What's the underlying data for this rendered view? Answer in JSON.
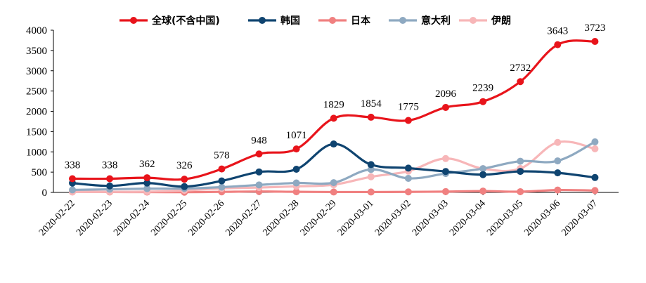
{
  "chart_data": {
    "type": "line",
    "categories": [
      "2020-02-22",
      "2020-02-23",
      "2020-02-24",
      "2020-02-25",
      "2020-02-26",
      "2020-02-27",
      "2020-02-28",
      "2020-02-29",
      "2020-03-01",
      "2020-03-02",
      "2020-03-03",
      "2020-03-04",
      "2020-03-05",
      "2020-03-06",
      "2020-03-07"
    ],
    "ylim": [
      0,
      4000
    ],
    "yticks": [
      0,
      500,
      1000,
      1500,
      2000,
      2500,
      3000,
      3500,
      4000
    ],
    "grid": false,
    "legend_position": "top",
    "series": [
      {
        "name": "全球(不含中国)",
        "color": "#e8141b",
        "labeled": true,
        "values": [
          338,
          338,
          362,
          326,
          578,
          948,
          1071,
          1829,
          1854,
          1775,
          2096,
          2239,
          2732,
          3643,
          3723
        ]
      },
      {
        "name": "韩国",
        "color": "#0f4470",
        "labeled": false,
        "values": [
          229,
          160,
          231,
          144,
          284,
          505,
          571,
          1194,
          686,
          600,
          516,
          438,
          518,
          483,
          367
        ]
      },
      {
        "name": "日本",
        "color": "#f08080",
        "labeled": false,
        "values": [
          12,
          10,
          8,
          5,
          14,
          23,
          15,
          10,
          10,
          13,
          20,
          33,
          18,
          59,
          47
        ]
      },
      {
        "name": "意大利",
        "color": "#8ea9c1",
        "labeled": false,
        "values": [
          62,
          77,
          93,
          97,
          130,
          185,
          233,
          240,
          566,
          347,
          466,
          587,
          769,
          778,
          1247
        ]
      },
      {
        "name": "伊朗",
        "color": "#f7b6b8",
        "labeled": false,
        "values": [
          10,
          15,
          20,
          50,
          100,
          120,
          150,
          190,
          385,
          523,
          835,
          586,
          591,
          1234,
          1076
        ]
      }
    ]
  }
}
